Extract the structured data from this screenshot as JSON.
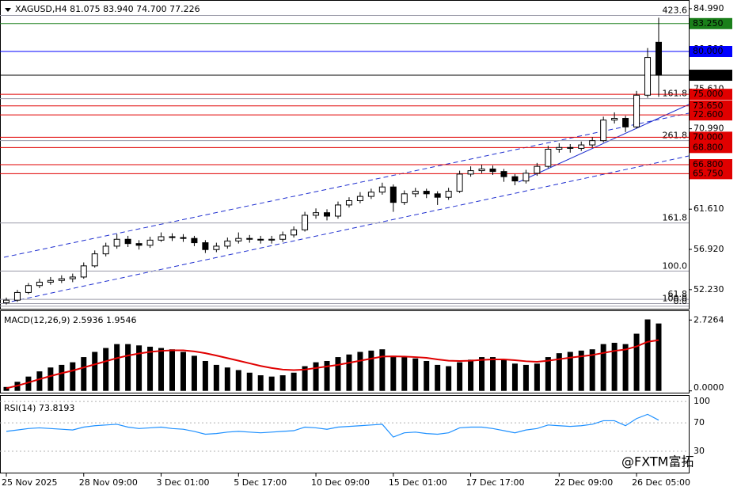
{
  "header": "XAGUSD,H4  81.075 83.940 74.700 77.226",
  "watermark": "@FXTM富拓",
  "chart_data": [
    {
      "type": "candlestick",
      "categories": [
        "25 Nov 2025",
        null,
        null,
        null,
        null,
        null,
        null,
        "28 Nov 09:00",
        null,
        null,
        null,
        null,
        null,
        null,
        "3 Dec 01:00",
        null,
        null,
        null,
        null,
        null,
        null,
        "5 Dec 17:00",
        null,
        null,
        null,
        null,
        null,
        null,
        "10 Dec 09:00",
        null,
        null,
        null,
        null,
        null,
        null,
        "15 Dec 01:00",
        null,
        null,
        null,
        null,
        null,
        null,
        "17 Dec 17:00",
        null,
        null,
        null,
        null,
        null,
        null,
        null,
        "22 Dec 09:00",
        null,
        null,
        null,
        null,
        null,
        null,
        "26 Dec 05:00",
        null,
        null
      ],
      "open": [
        50.7,
        51.0,
        51.9,
        52.7,
        53.1,
        53.3,
        53.5,
        53.7,
        55.0,
        56.4,
        57.3,
        58.1,
        57.6,
        57.4,
        58.0,
        58.4,
        58.3,
        58.2,
        57.7,
        56.9,
        57.3,
        57.9,
        58.2,
        58.1,
        58.0,
        58.1,
        58.6,
        59.2,
        60.9,
        61.2,
        60.8,
        62.1,
        62.6,
        63.1,
        63.6,
        64.2,
        62.4,
        63.4,
        63.7,
        63.4,
        63.0,
        63.7,
        65.7,
        66.1,
        66.3,
        66.0,
        65.4,
        64.9,
        65.8,
        66.6,
        68.6,
        68.8,
        68.7,
        69.1,
        69.6,
        72.0,
        72.2,
        71.2,
        74.9,
        81.075
      ],
      "high": [
        51.3,
        52.2,
        53.0,
        53.5,
        53.7,
        53.9,
        54.1,
        55.4,
        56.8,
        57.7,
        58.7,
        58.5,
        58.0,
        58.4,
        58.9,
        58.8,
        58.7,
        58.5,
        58.0,
        57.7,
        58.3,
        58.9,
        58.6,
        58.5,
        58.5,
        59.0,
        59.6,
        61.3,
        61.7,
        61.6,
        62.5,
        63.0,
        63.6,
        64.0,
        64.7,
        64.5,
        63.8,
        64.1,
        64.0,
        63.7,
        64.1,
        66.1,
        66.6,
        66.8,
        66.7,
        66.3,
        65.7,
        66.2,
        67.0,
        69.0,
        69.3,
        69.2,
        69.5,
        70.0,
        72.4,
        72.9,
        72.5,
        75.4,
        80.4,
        83.94
      ],
      "low": [
        50.5,
        50.8,
        51.7,
        52.4,
        52.8,
        53.0,
        53.1,
        53.5,
        54.8,
        56.1,
        57.0,
        57.2,
        56.9,
        57.1,
        57.8,
        57.9,
        57.8,
        57.3,
        56.5,
        56.6,
        57.0,
        57.6,
        57.7,
        57.6,
        57.6,
        57.8,
        58.3,
        59.0,
        60.5,
        60.3,
        60.5,
        61.8,
        62.3,
        62.8,
        63.3,
        61.3,
        62.1,
        63.0,
        62.9,
        62.1,
        62.7,
        63.5,
        65.4,
        65.8,
        65.6,
        64.8,
        64.4,
        64.6,
        65.5,
        66.4,
        68.2,
        68.2,
        68.4,
        68.8,
        69.4,
        71.6,
        70.6,
        71.0,
        74.6,
        74.7
      ],
      "close": [
        51.0,
        51.9,
        52.7,
        53.1,
        53.3,
        53.5,
        53.7,
        55.0,
        56.4,
        57.3,
        58.1,
        57.6,
        57.4,
        58.0,
        58.4,
        58.3,
        58.2,
        57.7,
        56.9,
        57.3,
        57.9,
        58.2,
        58.1,
        58.0,
        58.1,
        58.6,
        59.2,
        60.9,
        61.2,
        60.8,
        62.1,
        62.6,
        63.1,
        63.6,
        64.2,
        62.4,
        63.4,
        63.7,
        63.4,
        63.0,
        63.7,
        65.7,
        66.1,
        66.3,
        66.0,
        65.4,
        64.9,
        65.8,
        66.6,
        68.6,
        68.8,
        68.7,
        69.1,
        69.6,
        72.0,
        72.2,
        71.2,
        74.9,
        79.3,
        77.226
      ],
      "up_color": "#ffffff",
      "down_color": "#000000",
      "ylim": [
        50.0,
        86.0
      ],
      "yticks": [
        {
          "value": 84.99,
          "label": "84.990"
        },
        {
          "value": 80.29,
          "label": "80.290"
        },
        {
          "value": 75.61,
          "label": "75.610"
        },
        {
          "value": 70.99,
          "label": "70.990"
        },
        {
          "value": 61.61,
          "label": "61.610"
        },
        {
          "value": 56.92,
          "label": "56.920"
        },
        {
          "value": 52.23,
          "label": "52.230"
        }
      ],
      "levels": [
        {
          "value": 83.25,
          "label": "83.250",
          "color": "#1a7f1a"
        },
        {
          "value": 80.0,
          "label": "80.000",
          "color": "#0000ff"
        },
        {
          "value": 77.226,
          "label": "77.226",
          "color": "#000000"
        },
        {
          "value": 75.0,
          "label": "75.000",
          "color": "#e00000"
        },
        {
          "value": 73.65,
          "label": "73.650",
          "color": "#e00000"
        },
        {
          "value": 72.6,
          "label": "72.600",
          "color": "#e00000"
        },
        {
          "value": 70.0,
          "label": "70.000",
          "color": "#e00000"
        },
        {
          "value": 68.8,
          "label": "68.800",
          "color": "#e00000"
        },
        {
          "value": 66.8,
          "label": "66.800",
          "color": "#e00000"
        },
        {
          "value": 65.75,
          "label": "65.750",
          "color": "#e00000"
        }
      ],
      "fib_labels": [
        {
          "value": 84.2,
          "label": "423.6"
        },
        {
          "value": 74.5,
          "label": "161.8"
        },
        {
          "value": 69.6,
          "label": "261.8"
        },
        {
          "value": 60.0,
          "label": "161.8"
        },
        {
          "value": 54.4,
          "label": "100.0"
        },
        {
          "value": 51.1,
          "label": "61.8"
        },
        {
          "value": 50.6,
          "label": "100.0"
        },
        {
          "value": 50.3,
          "label": "0.0"
        }
      ]
    },
    {
      "type": "macd",
      "title": "MACD(12,26,9) 2.5936 1.9546",
      "values": [
        0.15,
        0.35,
        0.55,
        0.75,
        0.9,
        1.0,
        1.1,
        1.3,
        1.5,
        1.65,
        1.8,
        1.8,
        1.75,
        1.7,
        1.65,
        1.6,
        1.5,
        1.35,
        1.15,
        1.0,
        0.9,
        0.8,
        0.7,
        0.6,
        0.55,
        0.6,
        0.7,
        0.95,
        1.1,
        1.15,
        1.3,
        1.4,
        1.5,
        1.55,
        1.6,
        1.35,
        1.3,
        1.25,
        1.15,
        1.0,
        0.95,
        1.1,
        1.2,
        1.3,
        1.3,
        1.2,
        1.05,
        1.0,
        1.05,
        1.3,
        1.45,
        1.5,
        1.55,
        1.6,
        1.8,
        1.85,
        1.8,
        2.2,
        2.75,
        2.5936
      ],
      "signal": [
        0.1,
        0.2,
        0.32,
        0.45,
        0.57,
        0.68,
        0.78,
        0.9,
        1.02,
        1.14,
        1.26,
        1.36,
        1.44,
        1.5,
        1.54,
        1.56,
        1.56,
        1.52,
        1.45,
        1.36,
        1.26,
        1.16,
        1.06,
        0.96,
        0.88,
        0.82,
        0.8,
        0.82,
        0.88,
        0.94,
        1.0,
        1.08,
        1.16,
        1.24,
        1.32,
        1.33,
        1.32,
        1.3,
        1.27,
        1.21,
        1.16,
        1.15,
        1.16,
        1.19,
        1.21,
        1.21,
        1.18,
        1.14,
        1.12,
        1.16,
        1.22,
        1.28,
        1.33,
        1.38,
        1.46,
        1.54,
        1.59,
        1.71,
        1.89,
        1.9546
      ],
      "color": "#000000",
      "signal_color": "#e00000",
      "ylim": [
        -0.1,
        3.1
      ],
      "yticks": [
        2.7264,
        {
          "value": 0,
          "label": "0.0000"
        }
      ]
    },
    {
      "type": "rsi",
      "title": "RSI(14) 73.8193",
      "values": [
        58,
        60,
        62,
        63,
        62,
        61,
        60,
        64,
        66,
        67,
        68,
        64,
        62,
        63,
        64,
        62,
        61,
        58,
        54,
        55,
        57,
        58,
        57,
        56,
        57,
        58,
        59,
        64,
        63,
        61,
        64,
        65,
        66,
        67,
        68,
        50,
        56,
        57,
        55,
        54,
        56,
        63,
        64,
        64,
        62,
        59,
        56,
        60,
        62,
        67,
        66,
        65,
        66,
        68,
        73,
        73,
        66,
        76,
        82,
        73.8193
      ],
      "color": "#1e90ff",
      "ylim": [
        0,
        108
      ],
      "yticks": [
        100,
        70,
        30
      ]
    }
  ]
}
